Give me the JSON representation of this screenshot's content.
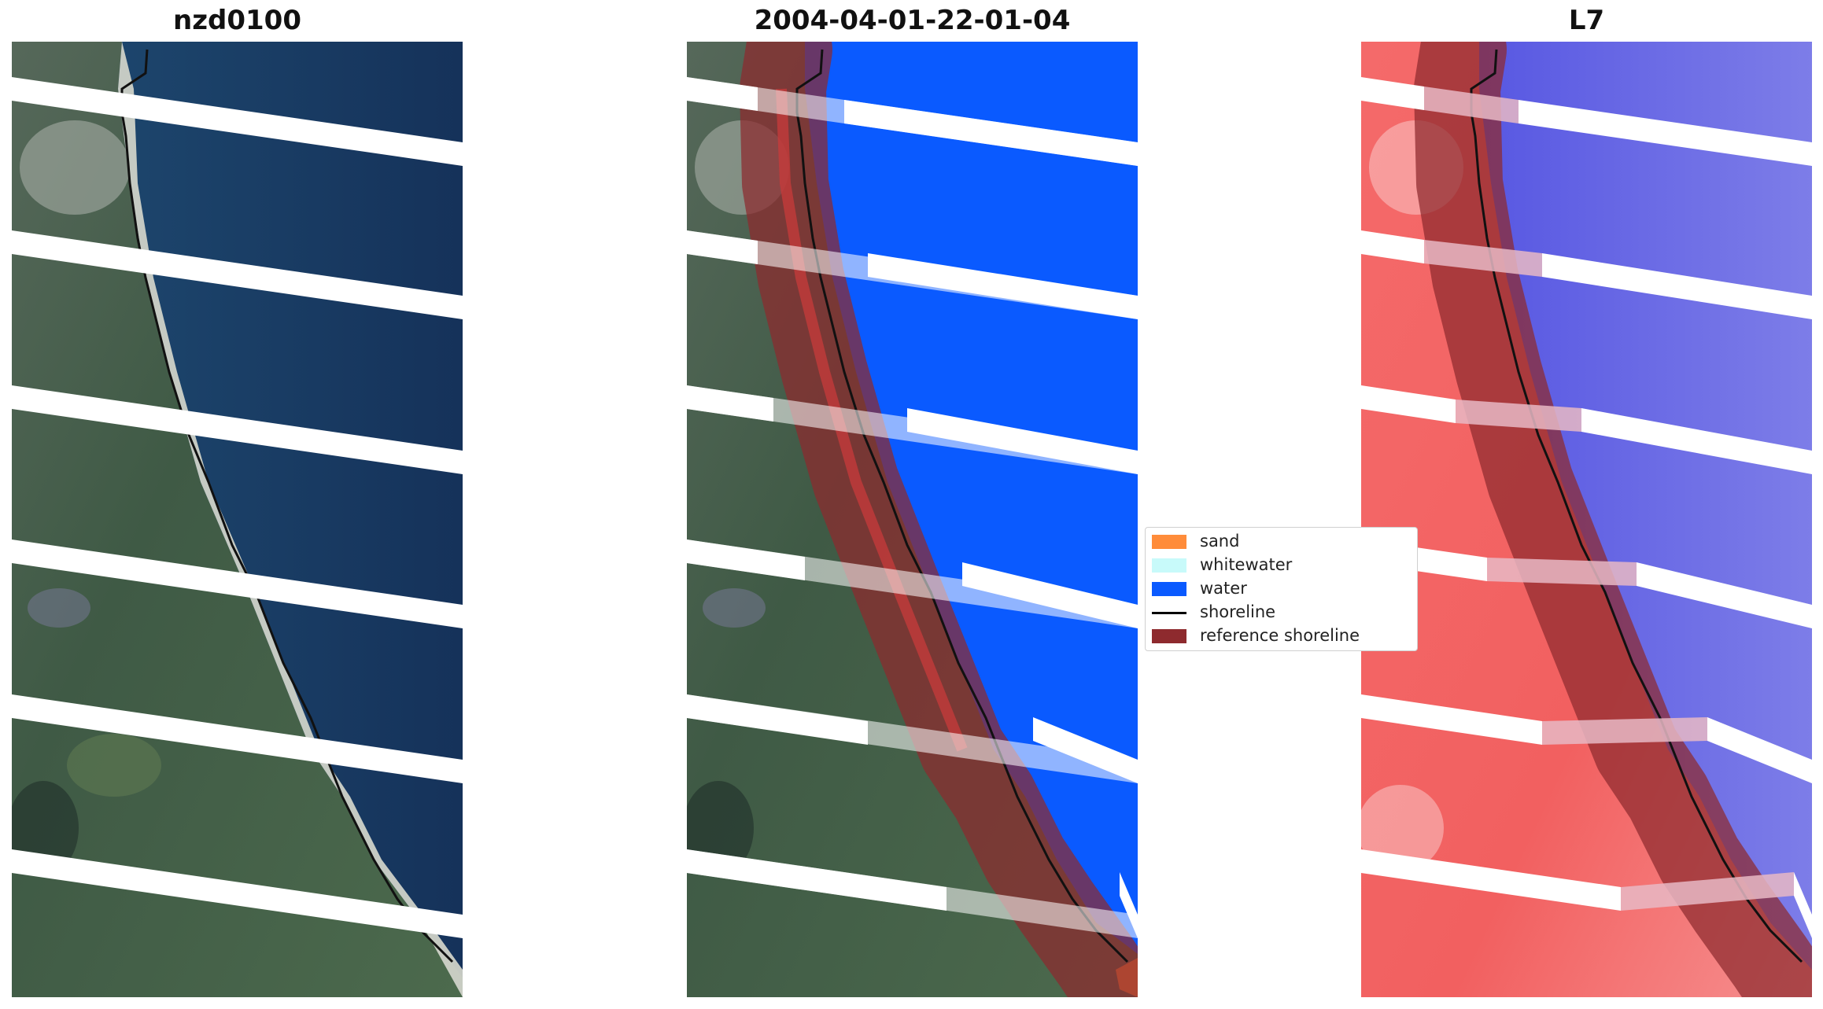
{
  "panels": {
    "left_title": "nzd0100",
    "middle_title": "2004-04-01-22-01-04",
    "right_title": "L7"
  },
  "legend": {
    "items": [
      {
        "label": "sand",
        "color": "#FF8C3A",
        "type": "patch"
      },
      {
        "label": "whitewater",
        "color": "#C8FAFA",
        "type": "patch"
      },
      {
        "label": "water",
        "color": "#0A5AFF",
        "type": "patch"
      },
      {
        "label": "shoreline",
        "color": "#000000",
        "type": "line"
      },
      {
        "label": "reference shoreline",
        "color": "#8E2A2E",
        "type": "patch"
      }
    ]
  },
  "colors": {
    "ocean": "#1B3A66",
    "water_class": "#0A5AFF",
    "land_true": "#3E5A4A",
    "beach": "#C9C9C0",
    "index_land": "#F07070",
    "index_water": "#5A5AE8",
    "buffer": "#8E2A2E"
  }
}
